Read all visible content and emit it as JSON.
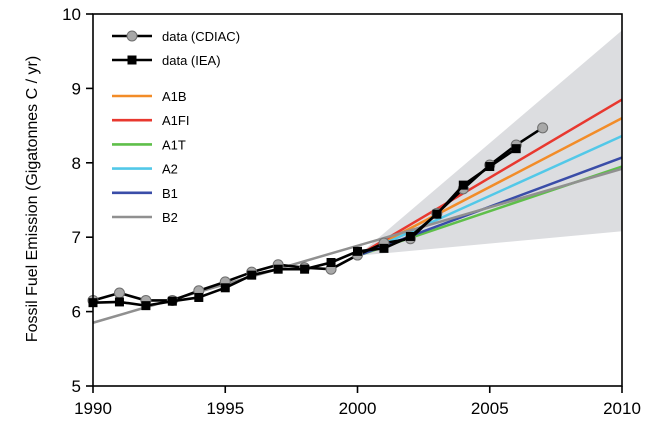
{
  "chart_data": {
    "type": "line",
    "title": "",
    "xlabel": "",
    "ylabel": "Fossil Fuel Emission (Gigatonnes C / yr)",
    "xlim": [
      1990,
      2010
    ],
    "ylim": [
      5,
      10
    ],
    "x_ticks": [
      1990,
      1995,
      2000,
      2005,
      2010
    ],
    "y_ticks": [
      5,
      6,
      7,
      8,
      9,
      10
    ],
    "grid": false,
    "legend_position": "top-left",
    "uncertainty_band": {
      "color": "#dcdde0",
      "x": [
        2000,
        2010
      ],
      "lower": [
        6.75,
        7.08
      ],
      "upper": [
        6.75,
        9.78
      ]
    },
    "series": [
      {
        "name": "data (CDIAC)",
        "kind": "observed",
        "marker": "circle",
        "color": "#000000",
        "marker_color": "#a8a8a8",
        "x": [
          1990,
          1991,
          1992,
          1993,
          1994,
          1995,
          1996,
          1997,
          1998,
          1999,
          2000,
          2001,
          2002,
          2003,
          2004,
          2005,
          2006,
          2007
        ],
        "y": [
          6.15,
          6.25,
          6.15,
          6.15,
          6.28,
          6.4,
          6.53,
          6.63,
          6.59,
          6.57,
          6.76,
          6.92,
          6.98,
          7.32,
          7.65,
          7.97,
          8.24,
          8.47
        ]
      },
      {
        "name": "data (IEA)",
        "kind": "observed",
        "marker": "square",
        "color": "#000000",
        "marker_color": "#000000",
        "x": [
          1990,
          1991,
          1992,
          1993,
          1994,
          1995,
          1996,
          1997,
          1998,
          1999,
          2000,
          2001,
          2002,
          2003,
          2004,
          2005,
          2006
        ],
        "y": [
          6.12,
          6.13,
          6.08,
          6.14,
          6.19,
          6.32,
          6.49,
          6.57,
          6.57,
          6.66,
          6.81,
          6.85,
          7.01,
          7.31,
          7.7,
          7.95,
          8.19
        ]
      },
      {
        "name": "A1B",
        "kind": "scenario",
        "color": "#f28c28",
        "x": [
          2000,
          2010
        ],
        "y": [
          6.75,
          8.6
        ]
      },
      {
        "name": "A1FI",
        "kind": "scenario",
        "color": "#e8382f",
        "x": [
          2000,
          2010
        ],
        "y": [
          6.75,
          8.85
        ]
      },
      {
        "name": "A1T",
        "kind": "scenario",
        "color": "#5fbf4a",
        "x": [
          2000,
          2010
        ],
        "y": [
          6.75,
          7.95
        ]
      },
      {
        "name": "A2",
        "kind": "scenario",
        "color": "#52c8e8",
        "x": [
          2000,
          2010
        ],
        "y": [
          6.75,
          8.36
        ]
      },
      {
        "name": "B1",
        "kind": "scenario",
        "color": "#3a4da8",
        "x": [
          2000,
          2010
        ],
        "y": [
          6.75,
          8.07
        ]
      },
      {
        "name": "B2",
        "kind": "scenario",
        "color": "#909090",
        "x": [
          1990,
          2010
        ],
        "y": [
          5.85,
          7.92
        ]
      }
    ]
  }
}
